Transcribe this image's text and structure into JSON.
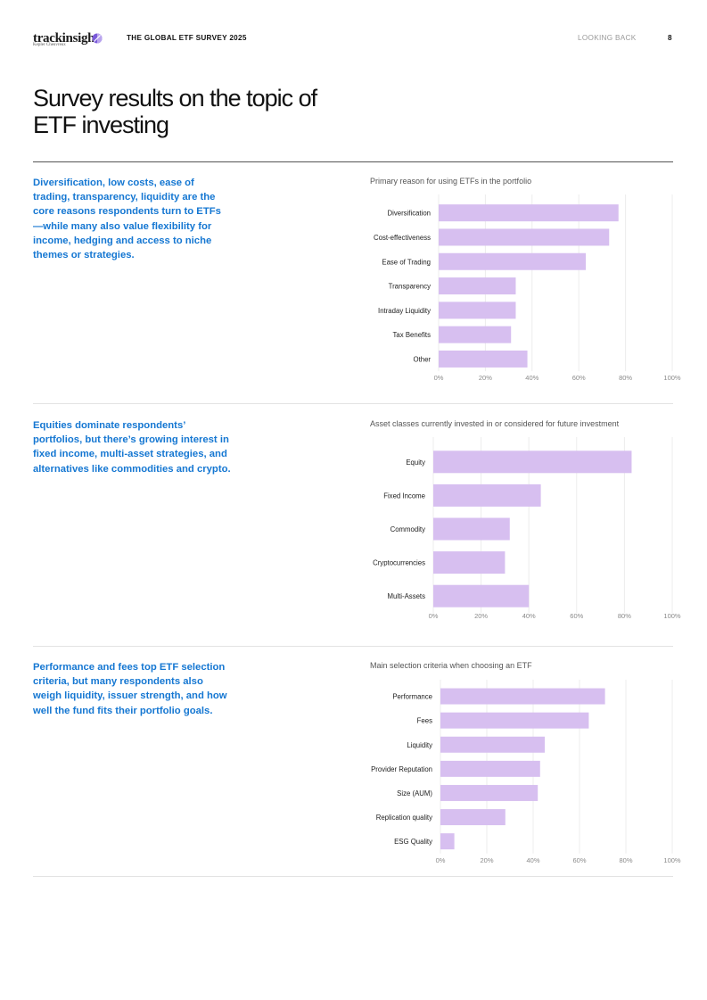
{
  "header": {
    "logo": "trackinsight",
    "logo_sub": "Kepler Cheuvreux",
    "title": "THE GLOBAL ETF SURVEY 2025",
    "section": "LOOKING BACK",
    "page_number": "8"
  },
  "page_title": "Survey results on the topic of ETF investing",
  "colors": {
    "bar": "#d7bff0",
    "accent_text": "#1577d2",
    "grid": "#ececec"
  },
  "sections": [
    {
      "blurb": "Diversification, low costs, ease of trading, transparency, liquidity are the core reasons respondents turn to ETFs—while many also value flexibility for income, hedging and access to niche themes or strategies."
    },
    {
      "blurb": "Equities dominate respondents’ portfolios, but there’s growing interest in fixed income, multi-asset strategies, and alternatives like commodities and crypto."
    },
    {
      "blurb": "Performance and fees top ETF selection criteria, but many respondents also weigh liquidity, issuer strength, and how well the fund fits their portfolio goals."
    }
  ],
  "chart_data": [
    {
      "type": "bar",
      "orientation": "horizontal",
      "title": "Primary reason for using ETFs in the portfolio",
      "categories": [
        "Diversification",
        "Cost-effectiveness",
        "Ease of Trading",
        "Transparency",
        "Intraday Liquidity",
        "Tax Benefits",
        "Other"
      ],
      "values": [
        77,
        73,
        63,
        33,
        33,
        31,
        38
      ],
      "xlim": [
        0,
        100
      ],
      "ticks": [
        "0%",
        "20%",
        "40%",
        "60%",
        "80%",
        "100%"
      ]
    },
    {
      "type": "bar",
      "orientation": "horizontal",
      "title": "Asset classes currently invested in or considered for future investment",
      "categories": [
        "Equity",
        "Fixed Income",
        "Commodity",
        "Cryptocurrencies",
        "Multi-Assets"
      ],
      "values": [
        83,
        45,
        32,
        30,
        40
      ],
      "xlim": [
        0,
        100
      ],
      "ticks": [
        "0%",
        "20%",
        "40%",
        "60%",
        "80%",
        "100%"
      ]
    },
    {
      "type": "bar",
      "orientation": "horizontal",
      "title": "Main selection criteria when choosing an ETF",
      "categories": [
        "Performance",
        "Fees",
        "Liquidity",
        "Provider Reputation",
        "Size (AUM)",
        "Replication quality",
        "ESG Quality"
      ],
      "values": [
        71,
        64,
        45,
        43,
        42,
        28,
        6
      ],
      "xlim": [
        0,
        100
      ],
      "ticks": [
        "0%",
        "20%",
        "40%",
        "60%",
        "80%",
        "100%"
      ]
    }
  ]
}
